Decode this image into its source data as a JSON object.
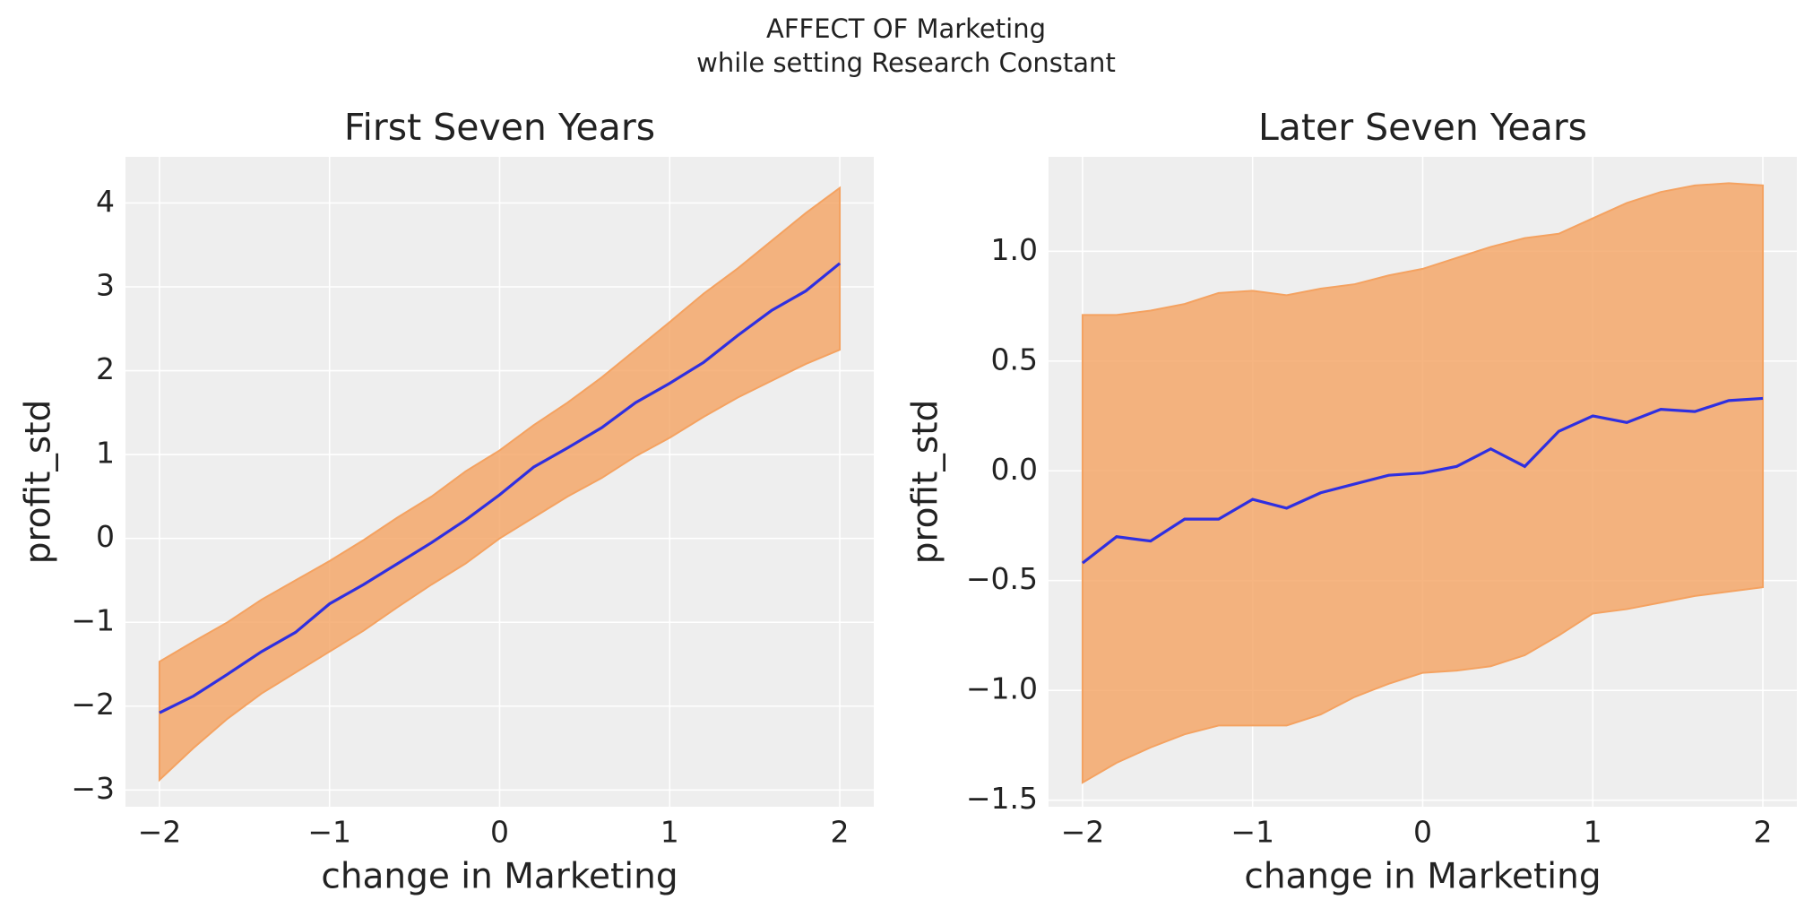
{
  "suptitle": [
    "AFFECT OF Marketing",
    "while setting Research Constant"
  ],
  "chart_data": [
    {
      "type": "line",
      "title": "First Seven Years",
      "xlabel": "change in Marketing",
      "ylabel": "profit_std",
      "x": [
        -2,
        -1.8,
        -1.6,
        -1.4,
        -1.2,
        -1,
        -0.8,
        -0.6,
        -0.4,
        -0.2,
        0,
        0.2,
        0.4,
        0.6,
        0.8,
        1,
        1.2,
        1.4,
        1.6,
        1.8,
        2
      ],
      "series": [
        {
          "color": "#2f2fe0",
          "values": [
            -2.08,
            -1.88,
            -1.62,
            -1.35,
            -1.12,
            -0.78,
            -0.55,
            -0.3,
            -0.05,
            0.22,
            0.52,
            0.85,
            1.08,
            1.32,
            1.62,
            1.85,
            2.1,
            2.42,
            2.72,
            2.95,
            3.28
          ]
        }
      ],
      "band": {
        "color": "#f4a261",
        "lower": [
          -2.88,
          -2.5,
          -2.15,
          -1.85,
          -1.6,
          -1.35,
          -1.1,
          -0.82,
          -0.55,
          -0.3,
          0,
          0.25,
          0.5,
          0.72,
          0.98,
          1.2,
          1.45,
          1.68,
          1.88,
          2.08,
          2.25
        ],
        "upper": [
          -1.47,
          -1.23,
          -1,
          -0.73,
          -0.5,
          -0.27,
          -0.02,
          0.25,
          0.5,
          0.8,
          1.05,
          1.35,
          1.62,
          1.92,
          2.25,
          2.58,
          2.92,
          3.22,
          3.55,
          3.88,
          4.18
        ]
      },
      "xlim": [
        -2.2,
        2.2
      ],
      "ylim": [
        -3.2,
        4.55
      ],
      "xticks": [
        {
          "value": -2,
          "label": "−2"
        },
        {
          "value": -1,
          "label": "−1"
        },
        0,
        1,
        2
      ],
      "yticks": [
        {
          "value": -3,
          "label": "−3"
        },
        {
          "value": -2,
          "label": "−2"
        },
        {
          "value": -1,
          "label": "−1"
        },
        0,
        1,
        2,
        3,
        4
      ],
      "grid": true
    },
    {
      "type": "line",
      "title": "Later Seven Years",
      "xlabel": "change in Marketing",
      "ylabel": "profit_std",
      "x": [
        -2,
        -1.8,
        -1.6,
        -1.4,
        -1.2,
        -1,
        -0.8,
        -0.6,
        -0.4,
        -0.2,
        0,
        0.2,
        0.4,
        0.6,
        0.8,
        1,
        1.2,
        1.4,
        1.6,
        1.8,
        2
      ],
      "series": [
        {
          "color": "#2f2fe0",
          "values": [
            -0.42,
            -0.3,
            -0.32,
            -0.22,
            -0.22,
            -0.13,
            -0.17,
            -0.1,
            -0.06,
            -0.02,
            -0.01,
            0.02,
            0.1,
            0.02,
            0.18,
            0.25,
            0.22,
            0.28,
            0.27,
            0.32,
            0.33
          ]
        }
      ],
      "band": {
        "color": "#f4a261",
        "lower": [
          -1.42,
          -1.33,
          -1.26,
          -1.2,
          -1.16,
          -1.16,
          -1.16,
          -1.11,
          -1.03,
          -0.97,
          -0.92,
          -0.91,
          -0.89,
          -0.84,
          -0.75,
          -0.65,
          -0.63,
          -0.6,
          -0.57,
          -0.55,
          -0.53
        ],
        "upper": [
          0.71,
          0.71,
          0.73,
          0.76,
          0.81,
          0.82,
          0.8,
          0.83,
          0.85,
          0.89,
          0.92,
          0.97,
          1.02,
          1.06,
          1.08,
          1.15,
          1.22,
          1.27,
          1.3,
          1.31,
          1.3
        ]
      },
      "xlim": [
        -2.2,
        2.2
      ],
      "ylim": [
        -1.53,
        1.43
      ],
      "xticks": [
        {
          "value": -2,
          "label": "−2"
        },
        {
          "value": -1,
          "label": "−1"
        },
        0,
        1,
        2
      ],
      "yticks": [
        {
          "value": -1.5,
          "label": "−1.5"
        },
        {
          "value": -1,
          "label": "−1.0"
        },
        {
          "value": -0.5,
          "label": "−0.5"
        },
        {
          "value": 0,
          "label": "0.0"
        },
        {
          "value": 0.5,
          "label": "0.5"
        },
        {
          "value": 1,
          "label": "1.0"
        }
      ],
      "grid": true
    }
  ]
}
